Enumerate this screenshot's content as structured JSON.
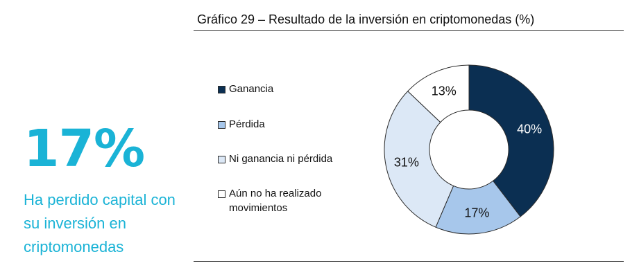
{
  "kpi": {
    "value": "17%",
    "description": "Ha perdido capital con su inversión en criptomonedas",
    "color": "#1ab3d6"
  },
  "chart_data": {
    "type": "pie",
    "title": "Gráfico 29 – Resultado de la inversión en criptomonedas (%)",
    "legend_position": "left",
    "categories": [
      "Ganancia",
      "Pérdida",
      "Ni ganancia ni pérdida",
      "Aún no ha realizado movimientos"
    ],
    "values": [
      40,
      17,
      31,
      13
    ],
    "labels": [
      "40%",
      "17%",
      "31%",
      "13%"
    ],
    "colors": [
      "#0b2f52",
      "#a7c7eb",
      "#dce8f6",
      "#ffffff"
    ],
    "label_colors": [
      "#ffffff",
      "#111111",
      "#111111",
      "#111111"
    ]
  }
}
